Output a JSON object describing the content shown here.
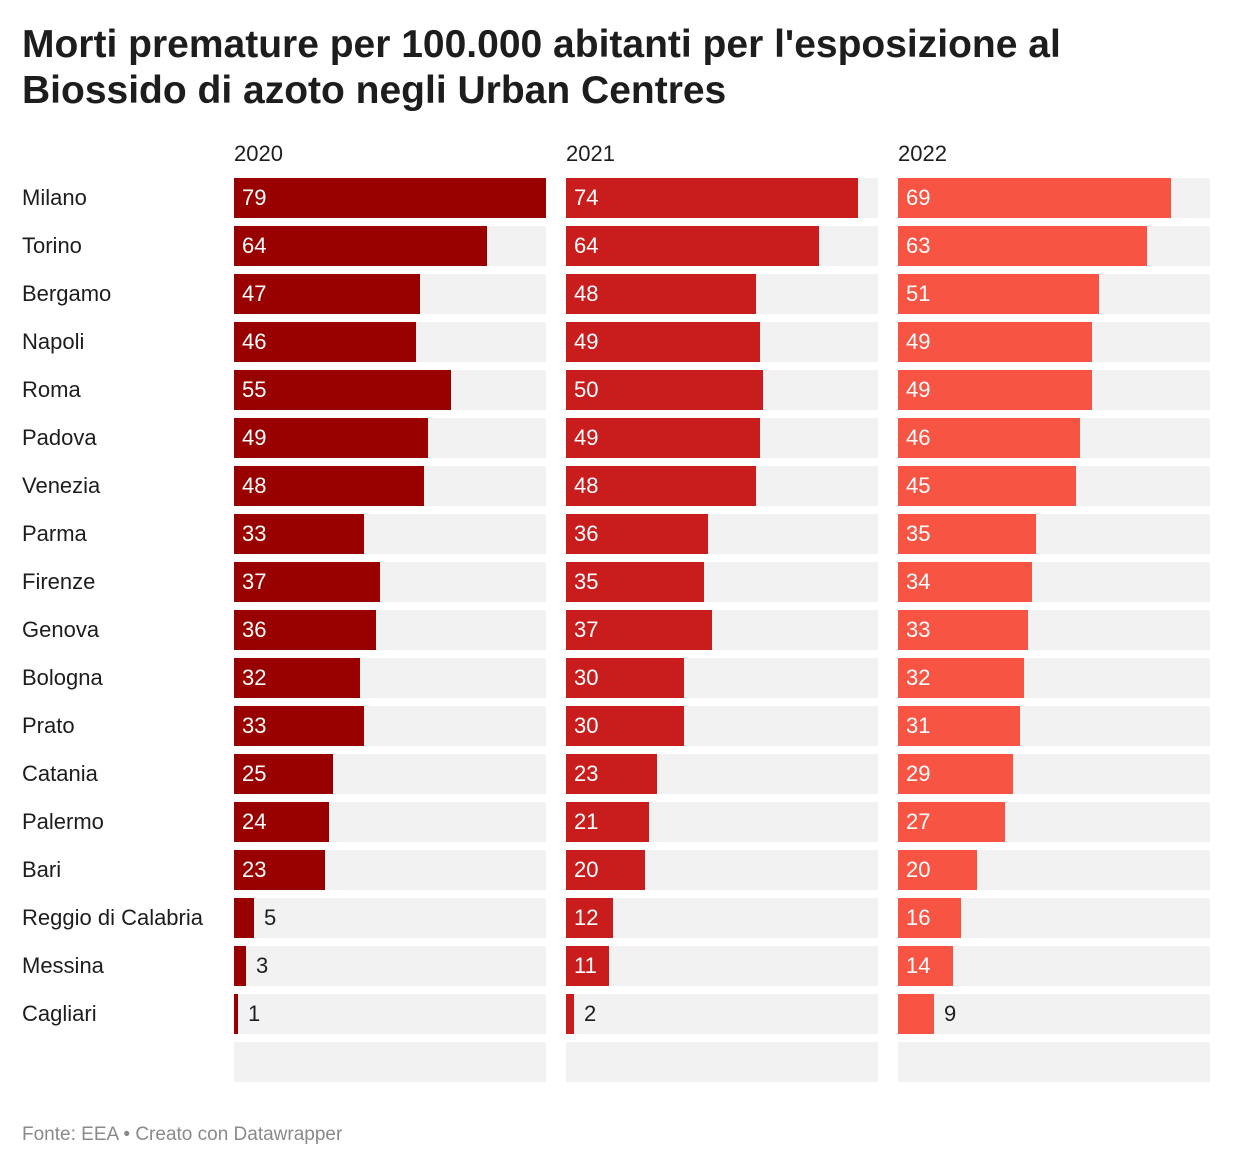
{
  "title": "Morti premature per 100.000 abitanti per l'esposizione al Biossido di azoto negli Urban Centres",
  "footer": "Fonte: EEA • Creato con Datawrapper",
  "chart_data": {
    "type": "bar",
    "orientation": "horizontal",
    "layout": "small-multiples",
    "title": "Morti premature per 100.000 abitanti per l'esposizione al Biossido di azoto negli Urban Centres",
    "source": "Fonte: EEA • Creato con Datawrapper",
    "xlim": [
      0,
      79
    ],
    "grid": false,
    "categories": [
      "Milano",
      "Torino",
      "Bergamo",
      "Napoli",
      "Roma",
      "Padova",
      "Venezia",
      "Parma",
      "Firenze",
      "Genova",
      "Bologna",
      "Prato",
      "Catania",
      "Palermo",
      "Bari",
      "Reggio di Calabria",
      "Messina",
      "Cagliari"
    ],
    "series": [
      {
        "name": "2020",
        "color": "#990000",
        "values": [
          79,
          64,
          47,
          46,
          55,
          49,
          48,
          33,
          37,
          36,
          32,
          33,
          25,
          24,
          23,
          5,
          3,
          1
        ]
      },
      {
        "name": "2021",
        "color": "#c91d1d",
        "values": [
          74,
          64,
          48,
          49,
          50,
          49,
          48,
          36,
          35,
          37,
          30,
          30,
          23,
          21,
          20,
          12,
          11,
          2
        ]
      },
      {
        "name": "2022",
        "color": "#f75444",
        "values": [
          69,
          63,
          51,
          49,
          49,
          46,
          45,
          35,
          34,
          33,
          32,
          31,
          29,
          27,
          20,
          16,
          14,
          9
        ]
      }
    ]
  }
}
